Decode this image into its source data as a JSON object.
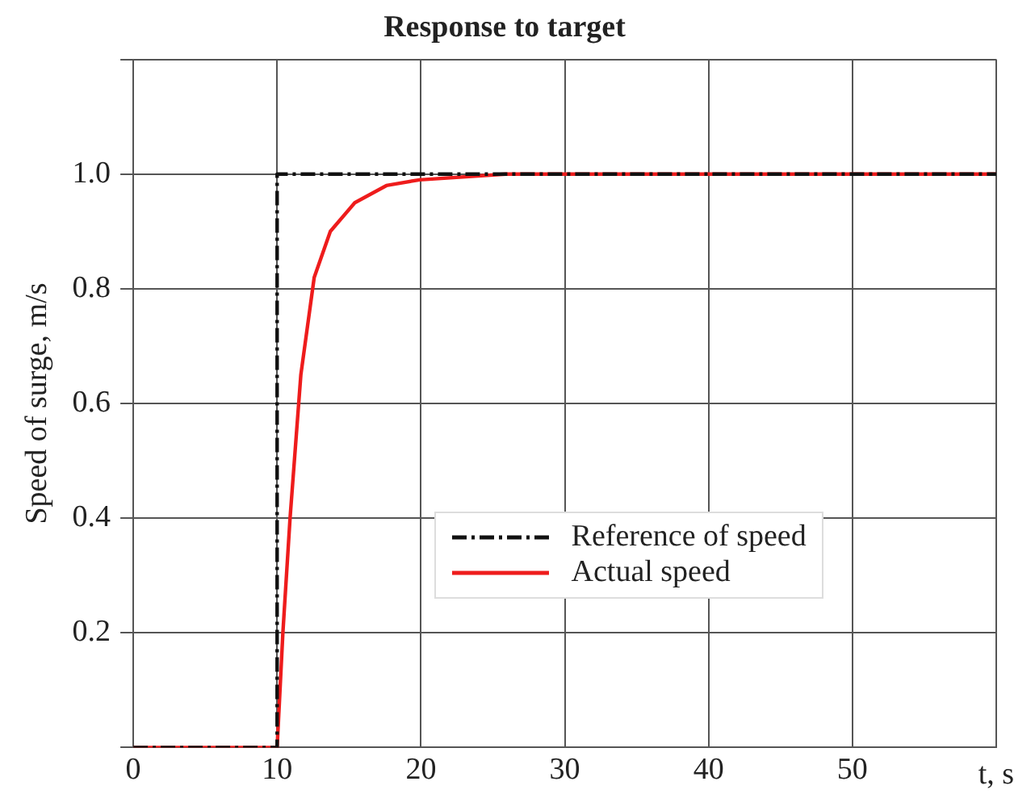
{
  "chart_data": {
    "type": "line",
    "title": "Response to target",
    "xlabel": "t, s",
    "ylabel": "Speed of surge, m/s",
    "x": [
      0,
      10,
      10,
      60
    ],
    "series": [
      {
        "name": "Reference of speed",
        "color": "#111111",
        "line_style": "dashed",
        "values": [
          0,
          0,
          1,
          1
        ]
      },
      {
        "name": "Actual speed",
        "color": "#ee1c1c",
        "line_style": "solid",
        "x": [
          0,
          10,
          10.4,
          10.9,
          11.65,
          12.58,
          13.7,
          15.4,
          17.6,
          19.9,
          25.9,
          30,
          40,
          60
        ],
        "values": [
          0,
          0,
          0.2,
          0.4,
          0.65,
          0.82,
          0.9,
          0.95,
          0.98,
          0.99,
          1.0,
          1.0,
          1.0,
          1.0
        ]
      }
    ],
    "xlim": [
      0,
      60
    ],
    "xticks": [
      0,
      10,
      20,
      30,
      40,
      50,
      {
        "value": 60,
        "label": null
      }
    ],
    "ylim": [
      0,
      1.2
    ],
    "yticks": [
      {
        "value": 0,
        "label": null
      },
      0.2,
      0.4,
      0.6,
      0.8,
      {
        "value": 1.0,
        "label": "1.0"
      },
      {
        "value": 1.2,
        "label": null
      }
    ],
    "grid": true,
    "legend": "bottom",
    "marker": "none"
  }
}
